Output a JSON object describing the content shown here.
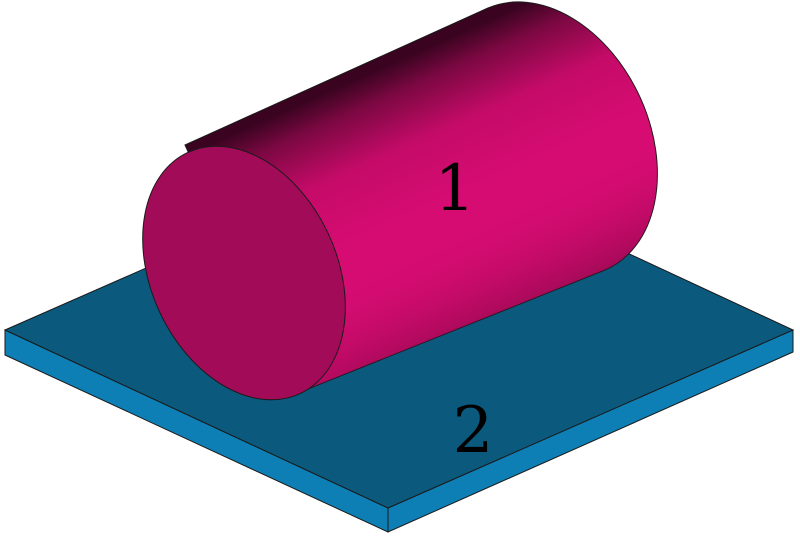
{
  "labels": {
    "cylinder": "1",
    "plate": "2"
  },
  "colors": {
    "plate_top": "#0b5a7e",
    "plate_side": "#0e7fb5",
    "cylinder_light": "#d60c72",
    "cylinder_mid": "#a10a55",
    "cylinder_dark": "#3a0420",
    "cylinder_end": "#a20b57",
    "outline": "#1a1a1a"
  }
}
